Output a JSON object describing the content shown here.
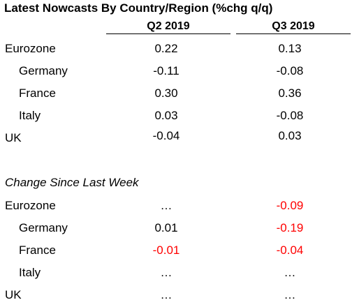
{
  "title": "Latest Nowcasts By Country/Region (%chg q/q)",
  "columns": [
    "Q2 2019",
    "Q3 2019"
  ],
  "nowcasts": [
    {
      "label": "Eurozone",
      "q2": "0.22",
      "q3": "0.13"
    },
    {
      "label": "Germany",
      "q2": "-0.11",
      "q3": "-0.08"
    },
    {
      "label": "France",
      "q2": "0.30",
      "q3": "0.36"
    },
    {
      "label": "Italy",
      "q2": "0.03",
      "q3": "-0.08"
    },
    {
      "label": "UK",
      "q2": "-0.04",
      "q3": "0.03"
    }
  ],
  "change_section_title": "Change Since Last Week",
  "changes": [
    {
      "label": "Eurozone",
      "q2": "…",
      "q3": "-0.09"
    },
    {
      "label": "Germany",
      "q2": "0.01",
      "q3": "-0.19"
    },
    {
      "label": "France",
      "q2": "-0.01",
      "q3": "-0.04"
    },
    {
      "label": "Italy",
      "q2": "…",
      "q3": "…"
    },
    {
      "label": "UK",
      "q2": "…",
      "q3": "…"
    }
  ],
  "colors": {
    "negative_change": "#ff0000",
    "text": "#000000"
  }
}
